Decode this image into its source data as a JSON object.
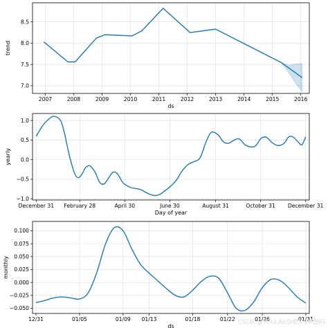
{
  "chart_data": [
    {
      "type": "line",
      "xlabel": "ds",
      "ylabel": "trend",
      "xlim": [
        2006.55,
        2016.3
      ],
      "ylim": [
        6.82,
        8.95
      ],
      "x_ticks": [
        2007,
        2008,
        2009,
        2010,
        2011,
        2012,
        2013,
        2014,
        2015,
        2016
      ],
      "x_tick_labels": [
        "2007",
        "2008",
        "2009",
        "2010",
        "2011",
        "2012",
        "2013",
        "2014",
        "2015",
        "2016"
      ],
      "y_ticks": [
        7.0,
        7.5,
        8.0,
        8.5
      ],
      "y_tick_labels": [
        "7.0",
        "7.5",
        "8.0",
        "8.5"
      ],
      "grid": true,
      "series": [
        {
          "x": [
            2006.95,
            2007.8,
            2008.05,
            2008.8,
            2009.1,
            2010.05,
            2010.4,
            2011.15,
            2012.1,
            2013.0,
            2015.3,
            2016.05
          ],
          "y": [
            8.03,
            7.56,
            7.56,
            8.12,
            8.2,
            8.17,
            8.29,
            8.82,
            8.25,
            8.33,
            7.55,
            7.19
          ]
        }
      ],
      "uncertainty_band": {
        "x": [
          2015.3,
          2015.6,
          2015.85,
          2016.05
        ],
        "lower": [
          7.55,
          7.28,
          7.02,
          6.86
        ],
        "upper": [
          7.55,
          7.48,
          7.52,
          7.52
        ]
      },
      "colors": {
        "line": "#1f77b4",
        "band": "#1f77b4"
      }
    },
    {
      "type": "line",
      "xlabel": "Day of year",
      "ylabel": "yearly",
      "xlim": [
        -5,
        370
      ],
      "ylim": [
        -1.03,
        1.18
      ],
      "x_ticks": [
        0,
        59,
        120,
        181,
        243,
        304,
        365
      ],
      "x_tick_labels": [
        "December 31",
        "February 28",
        "April 30",
        "June 30",
        "August 31",
        "October 31",
        "December 31"
      ],
      "y_ticks": [
        -1.0,
        -0.5,
        0.0,
        0.5,
        1.0
      ],
      "y_tick_labels": [
        "−1.0",
        "−0.5",
        "0.0",
        "0.5",
        "1.0"
      ],
      "grid": true,
      "series": [
        {
          "x": [
            0,
            10,
            20,
            26,
            33,
            38,
            45,
            52,
            57,
            62,
            67,
            73,
            80,
            86,
            92,
            98,
            104,
            110,
            118,
            128,
            136,
            142,
            150,
            158,
            166,
            174,
            182,
            190,
            198,
            206,
            214,
            222,
            230,
            236,
            241,
            247,
            254,
            261,
            268,
            275,
            283,
            290,
            297,
            305,
            312,
            320,
            328,
            336,
            342,
            348,
            355,
            360,
            365
          ],
          "y": [
            0.6,
            0.9,
            1.08,
            1.1,
            1.0,
            0.7,
            0.1,
            -0.35,
            -0.46,
            -0.37,
            -0.2,
            -0.16,
            -0.33,
            -0.58,
            -0.62,
            -0.47,
            -0.32,
            -0.36,
            -0.6,
            -0.71,
            -0.74,
            -0.77,
            -0.85,
            -0.91,
            -0.9,
            -0.8,
            -0.68,
            -0.52,
            -0.28,
            -0.12,
            -0.05,
            0.05,
            0.45,
            0.68,
            0.7,
            0.62,
            0.45,
            0.42,
            0.5,
            0.53,
            0.38,
            0.33,
            0.35,
            0.55,
            0.57,
            0.43,
            0.36,
            0.42,
            0.58,
            0.58,
            0.45,
            0.38,
            0.58
          ]
        }
      ],
      "colors": {
        "line": "#1f77b4"
      }
    },
    {
      "type": "line",
      "xlabel": "ds",
      "ylabel": "monthly",
      "xlim": [
        -0.4,
        31.4
      ],
      "ylim": [
        -0.06,
        0.118
      ],
      "x_ticks": [
        0,
        5,
        10,
        13,
        18,
        22,
        26,
        31
      ],
      "x_tick_labels": [
        "12/31",
        "01/05",
        "01/09",
        "01/13",
        "01/18",
        "01/22",
        "01/26",
        "01/31"
      ],
      "y_ticks": [
        -0.05,
        -0.025,
        0.0,
        0.025,
        0.05,
        0.075,
        0.1
      ],
      "y_tick_labels": [
        "−0.050",
        "−0.025",
        "0.000",
        "0.025",
        "0.050",
        "0.075",
        "0.100"
      ],
      "grid": true,
      "series": [
        {
          "x": [
            0,
            1,
            2,
            3,
            4,
            5,
            6,
            7,
            8,
            9,
            10,
            11,
            12,
            13,
            14,
            15,
            16,
            17,
            18,
            19,
            20,
            21,
            22,
            23,
            24,
            25,
            26,
            27,
            28,
            29,
            30,
            31
          ],
          "y": [
            -0.039,
            -0.035,
            -0.03,
            -0.028,
            -0.03,
            -0.032,
            -0.02,
            0.02,
            0.075,
            0.106,
            0.1,
            0.065,
            0.035,
            0.018,
            0.003,
            -0.012,
            -0.025,
            -0.028,
            -0.015,
            0.002,
            0.012,
            0.008,
            -0.02,
            -0.05,
            -0.054,
            -0.038,
            -0.01,
            0.006,
            0.004,
            -0.01,
            -0.028,
            -0.04
          ]
        }
      ],
      "colors": {
        "line": "#1f77b4"
      }
    }
  ],
  "watermark": "CSDN @YOULANSHENGMENG"
}
